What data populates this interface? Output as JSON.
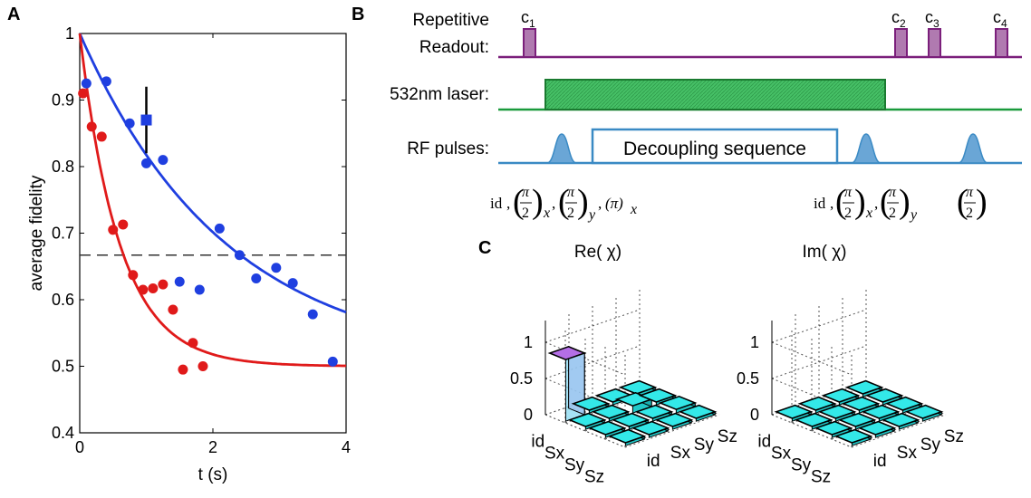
{
  "panels": {
    "A": "A",
    "B": "B",
    "C": "C"
  },
  "chart_data": {
    "type": "scatter",
    "title": "",
    "xlabel": "t (s)",
    "ylabel": "average fidelity",
    "xlim": [
      0,
      4
    ],
    "ylim": [
      0.4,
      1
    ],
    "xticks": [
      "0",
      "2",
      "4"
    ],
    "yticks": [
      "0.4",
      "0.5",
      "0.6",
      "0.7",
      "0.8",
      "0.9",
      "1"
    ],
    "threshold": 0.667,
    "series": [
      {
        "color": "#1f3fe0",
        "x": [
          0.1,
          0.4,
          0.75,
          1.0,
          1.25,
          1.5,
          1.8,
          2.1,
          2.4,
          2.65,
          2.95,
          3.2,
          3.5,
          3.8
        ],
        "y": [
          0.925,
          0.928,
          0.865,
          0.805,
          0.81,
          0.627,
          0.615,
          0.707,
          0.667,
          0.632,
          0.648,
          0.625,
          0.578,
          0.507
        ],
        "fit": {
          "amplitude": 0.5,
          "tau": 2.2,
          "offset": 0.5
        }
      },
      {
        "color": "#e01a1a",
        "x": [
          0.05,
          0.18,
          0.33,
          0.5,
          0.65,
          0.8,
          0.95,
          1.1,
          1.25,
          1.4,
          1.55,
          1.7,
          1.85
        ],
        "y": [
          0.91,
          0.86,
          0.845,
          0.705,
          0.713,
          0.637,
          0.615,
          0.617,
          0.623,
          0.585,
          0.495,
          0.535,
          0.5
        ],
        "fit": {
          "amplitude": 0.5,
          "tau": 0.6,
          "offset": 0.5
        }
      }
    ],
    "highlight": {
      "x": 1.0,
      "y": 0.87,
      "err_low": 0.82,
      "err_high": 0.92,
      "color": "#1f3fe0"
    }
  },
  "panelB": {
    "rows": {
      "readout_line1": "Repetitive",
      "readout_line2": "Readout:",
      "laser": "532nm laser:",
      "rf": "RF pulses:"
    },
    "readout_pulses": [
      "c",
      "c",
      "c",
      "c"
    ],
    "readout_subs": [
      "1",
      "2",
      "3",
      "4"
    ],
    "decoupling_label": "Decoupling sequence",
    "colors": {
      "readout": "#7b1f7b",
      "readout_fill": "#b07ab0",
      "laser": "#1a9a3c",
      "laser_fill": "#3dbb5c",
      "rf": "#3a8ac4"
    },
    "formula_left": {
      "id": "id",
      "frac_num": "π",
      "frac_den": "2",
      "sub_x": "x",
      "sub_y": "y",
      "pi": "(π)"
    },
    "formula_mid": {
      "id": "id",
      "frac_num": "π",
      "frac_den": "2",
      "sub_x": "x",
      "sub_y": "y"
    },
    "formula_right": {
      "frac_num": "π",
      "frac_den": "2"
    }
  },
  "panelC": {
    "re_title": "Re(  χ)",
    "im_title": "Im(  χ)",
    "zticks": [
      "0",
      "0.5",
      "1"
    ],
    "axis_left": [
      "id",
      "Sx",
      "Sy",
      "Sz"
    ],
    "axis_right": [
      "id",
      "Sx",
      "Sy",
      "Sz"
    ],
    "bar_color": "#33e8e8",
    "highlight_bar": "#b46ee6"
  }
}
